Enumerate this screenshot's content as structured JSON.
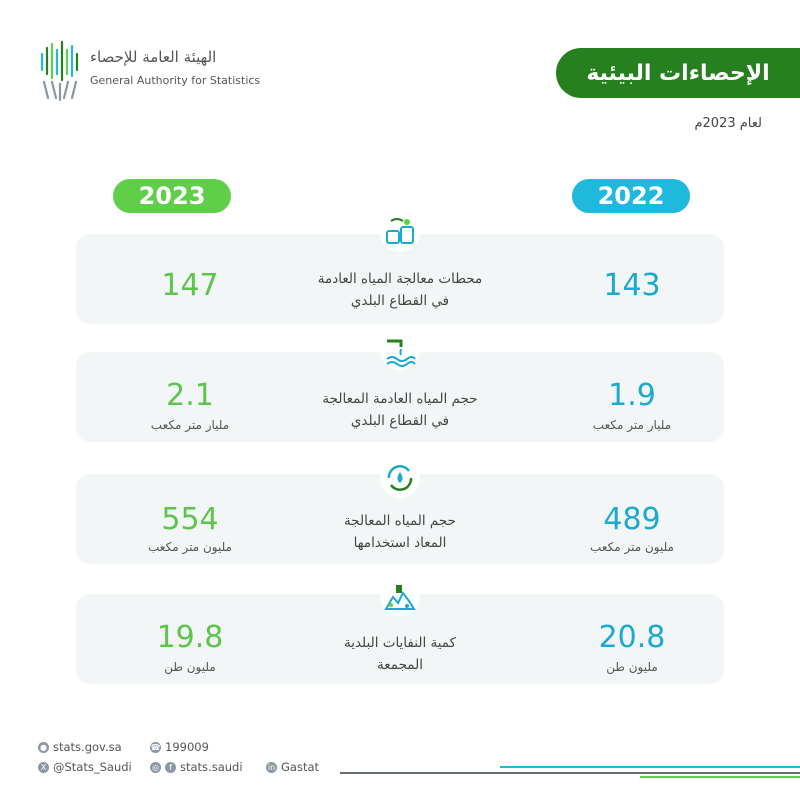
{
  "logo": {
    "arabic_name": "الهيئة العامة للإحصاء",
    "english_name": "General Authority for Statistics"
  },
  "header": {
    "title": "الإحصاءات البيئية",
    "subtitle": "لعام 2023م"
  },
  "years": {
    "left": "2023",
    "right": "2022"
  },
  "stats": [
    {
      "icon": "treatment-plant-icon",
      "label_line1": "محطات معالجة المياه العادمة",
      "label_line2": "في القطاع البلدي",
      "value_2023": "147",
      "unit_2023": "",
      "value_2022": "143",
      "unit_2022": ""
    },
    {
      "icon": "water-pipe-icon",
      "label_line1": "حجم المياه العادمة المعالجة",
      "label_line2": "في القطاع البلدي",
      "value_2023": "2.1",
      "unit_2023": "مليار متر مكعب",
      "value_2022": "1.9",
      "unit_2022": "مليار متر مكعب"
    },
    {
      "icon": "water-recycle-icon",
      "label_line1": "حجم المياه المعالجة",
      "label_line2": "المعاد استخدامها",
      "value_2023": "554",
      "unit_2023": "مليون متر مكعب",
      "value_2022": "489",
      "unit_2022": "مليون متر مكعب"
    },
    {
      "icon": "waste-pile-icon",
      "label_line1": "كمية النفايات البلدية",
      "label_line2": "المجمعة",
      "value_2023": "19.8",
      "unit_2023": "مليون طن",
      "value_2022": "20.8",
      "unit_2022": "مليون طن"
    }
  ],
  "footer": {
    "website": "stats.gov.sa",
    "phone": "199009",
    "twitter": "@Stats_Saudi",
    "social": "stats.saudi",
    "linkedin": "Gastat"
  },
  "colors": {
    "banner_green": "#27801f",
    "year_2023": "#5fcf4a",
    "year_2022": "#1eb9dd",
    "value_2023": "#5dc44c",
    "value_2022": "#1aa9cf"
  }
}
